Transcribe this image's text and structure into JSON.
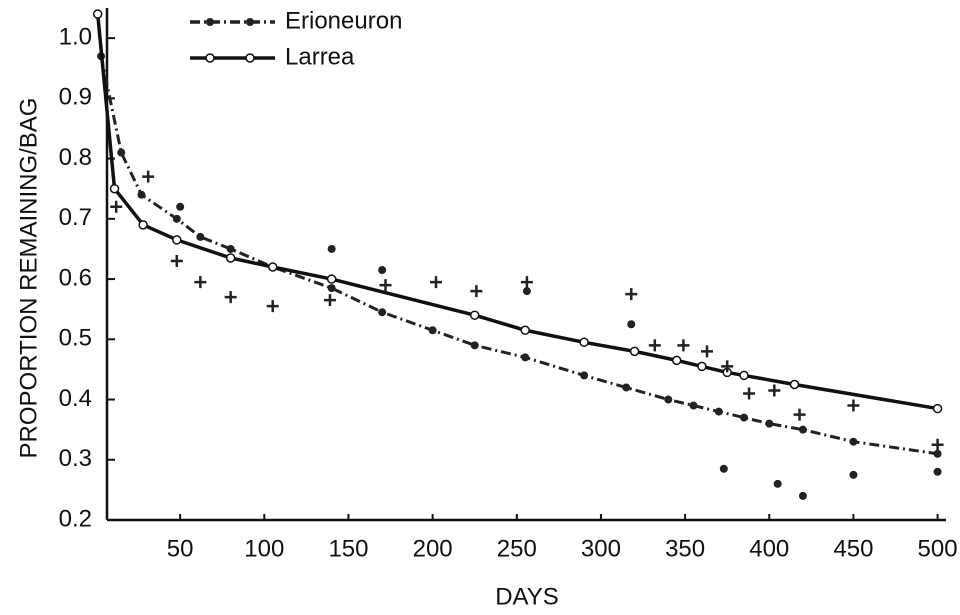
{
  "chart_data": {
    "type": "line",
    "xlabel": "DAYS",
    "ylabel": "PROPORTION REMAINING/BAG",
    "xlim": [
      0,
      505
    ],
    "ylim": [
      0.2,
      1.05
    ],
    "xticks": [
      50,
      100,
      150,
      200,
      250,
      300,
      350,
      400,
      450,
      500
    ],
    "yticks": [
      0.2,
      0.3,
      0.4,
      0.5,
      0.6,
      0.7,
      0.8,
      0.9,
      {
        "value": 1,
        "label": "1.0"
      }
    ],
    "legend": "upper-left",
    "series": [
      {
        "name": "Erioneuron",
        "color": "#222",
        "dash": true,
        "marker": "dot",
        "x": [
          3,
          15,
          27,
          48,
          62,
          80,
          105,
          140,
          170,
          200,
          225,
          255,
          290,
          315,
          340,
          355,
          370,
          385,
          400,
          420,
          450,
          500
        ],
        "values": [
          0.97,
          0.81,
          0.74,
          0.7,
          0.67,
          0.65,
          0.62,
          0.585,
          0.545,
          0.515,
          0.49,
          0.47,
          0.44,
          0.42,
          0.4,
          0.39,
          0.38,
          0.37,
          0.36,
          0.35,
          0.33,
          0.31
        ]
      },
      {
        "name": "Larrea",
        "color": "#111",
        "dash": false,
        "marker": "circle",
        "x": [
          1,
          11,
          28,
          48,
          80,
          105,
          140,
          225,
          255,
          290,
          320,
          345,
          360,
          375,
          385,
          415,
          500
        ],
        "values": [
          1.04,
          0.75,
          0.69,
          0.665,
          0.635,
          0.62,
          0.6,
          0.54,
          0.515,
          0.495,
          0.48,
          0.465,
          0.455,
          0.445,
          0.44,
          0.425,
          0.385
        ]
      }
    ],
    "points": [
      {
        "marker": "cross",
        "x": [
          12,
          31,
          48,
          62,
          80,
          105,
          139,
          172,
          202,
          226,
          256,
          318,
          332,
          349,
          363,
          375,
          388,
          403,
          418,
          450,
          500
        ],
        "values": [
          0.72,
          0.77,
          0.63,
          0.595,
          0.57,
          0.555,
          0.565,
          0.59,
          0.595,
          0.58,
          0.595,
          0.575,
          0.49,
          0.49,
          0.48,
          0.455,
          0.41,
          0.415,
          0.375,
          0.39,
          0.325
        ]
      },
      {
        "marker": "dot",
        "x": [
          50,
          140,
          170,
          256,
          318,
          373,
          405,
          420,
          450,
          500
        ],
        "values": [
          0.72,
          0.65,
          0.615,
          0.58,
          0.525,
          0.285,
          0.26,
          0.24,
          0.275,
          0.28
        ]
      }
    ]
  }
}
